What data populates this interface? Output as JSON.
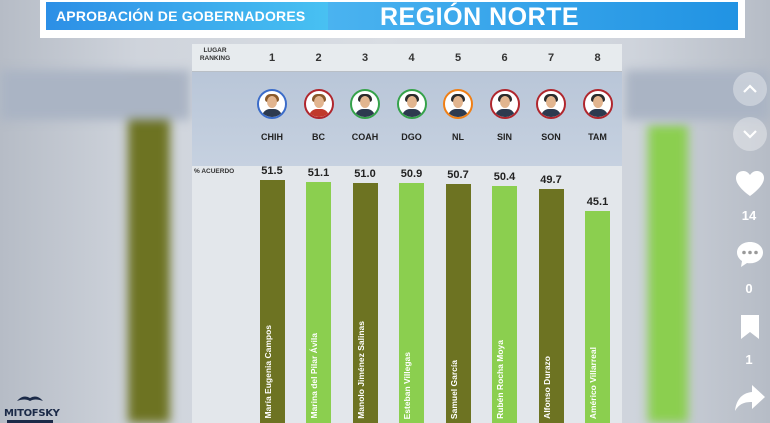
{
  "header": {
    "subtitle": "APROBACIÓN DE GOBERNADORES",
    "title": "REGIÓN NORTE"
  },
  "labels": {
    "ranking": "LUGAR RANKING",
    "acuerdo": "% ACUERDO"
  },
  "chart_data": {
    "type": "bar",
    "title": "REGIÓN NORTE",
    "subtitle": "APROBACIÓN DE GOBERNADORES",
    "ylabel": "% ACUERDO",
    "ylim": [
      0,
      52
    ],
    "ranks": [
      "1",
      "2",
      "3",
      "4",
      "5",
      "6",
      "7",
      "8"
    ],
    "categories": [
      "CHIH",
      "BC",
      "COAH",
      "DGO",
      "NL",
      "SIN",
      "SON",
      "TAM"
    ],
    "values": [
      51.5,
      51.1,
      51.0,
      50.9,
      50.7,
      50.4,
      49.7,
      45.1
    ],
    "value_labels": [
      "51.5",
      "51.1",
      "51.0",
      "50.9",
      "50.7",
      "50.4",
      "49.7",
      "45.1"
    ],
    "governors": [
      "María Eugenia Campos",
      "Marina del Pilar Ávila",
      "Manolo Jiménez Salinas",
      "Esteban Villegas",
      "Samuel García",
      "Rubén Rocha Moya",
      "Alfonso Durazo",
      "Américo Villarreal"
    ],
    "party_colors": [
      "#3b6cc9",
      "#b0262d",
      "#35a24a",
      "#35a24a",
      "#f07f15",
      "#b0262d",
      "#b0262d",
      "#b0262d"
    ],
    "bar_colors": [
      "#6d7322",
      "#8bcf4f",
      "#6d7322",
      "#8bcf4f",
      "#6d7322",
      "#8bcf4f",
      "#6d7322",
      "#8bcf4f"
    ]
  },
  "sidebar": {
    "likes": "14",
    "comments": "0",
    "saves": "1",
    "like_color": "#ffffff"
  },
  "logo": {
    "text": "MITOFSKY"
  }
}
